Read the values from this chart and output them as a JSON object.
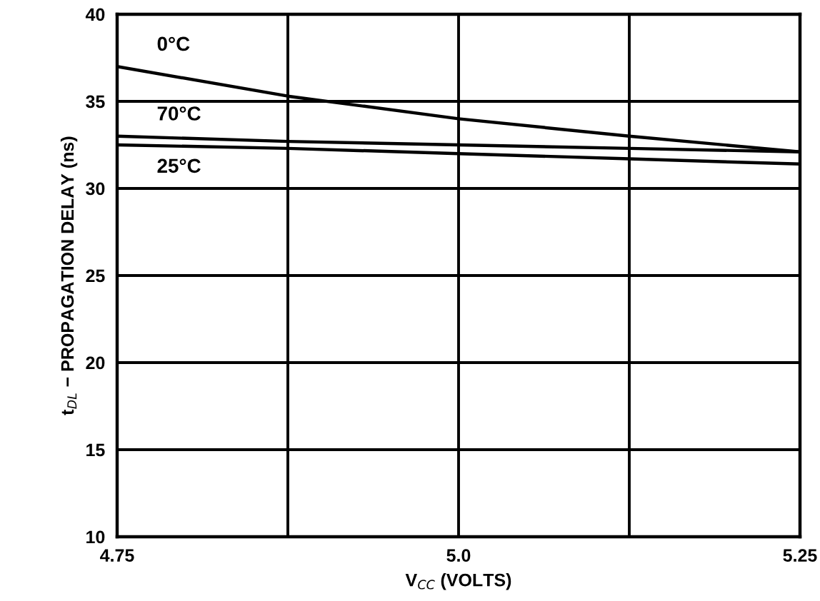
{
  "chart_data": {
    "type": "line",
    "xlabel": "V$_{CC}$ (VOLTS)",
    "ylabel": "t$_{DL}$ − PROPAGATION DELAY (ns)",
    "x": [
      4.75,
      4.875,
      5.0,
      5.125,
      5.25
    ],
    "series": [
      {
        "name": "0°C",
        "color": "#000000",
        "values": [
          37.0,
          35.3,
          34.0,
          33.0,
          32.1
        ]
      },
      {
        "name": "70°C",
        "color": "#000000",
        "values": [
          33.0,
          32.7,
          32.5,
          32.3,
          32.1
        ]
      },
      {
        "name": "25°C",
        "color": "#000000",
        "values": [
          32.5,
          32.3,
          32.0,
          31.7,
          31.4
        ]
      }
    ],
    "xlim": [
      4.75,
      5.25
    ],
    "xticks": [
      4.75,
      {
        "value": 4.875,
        "label": null
      },
      {
        "value": 5.0,
        "label": "5.0"
      },
      {
        "value": 5.125,
        "label": null
      },
      5.25
    ],
    "ylim": [
      10,
      40
    ],
    "yticks": [
      10,
      15,
      20,
      25,
      30,
      35,
      40
    ],
    "grid": true,
    "legend": false,
    "marker": "none",
    "line_style": "solid"
  }
}
